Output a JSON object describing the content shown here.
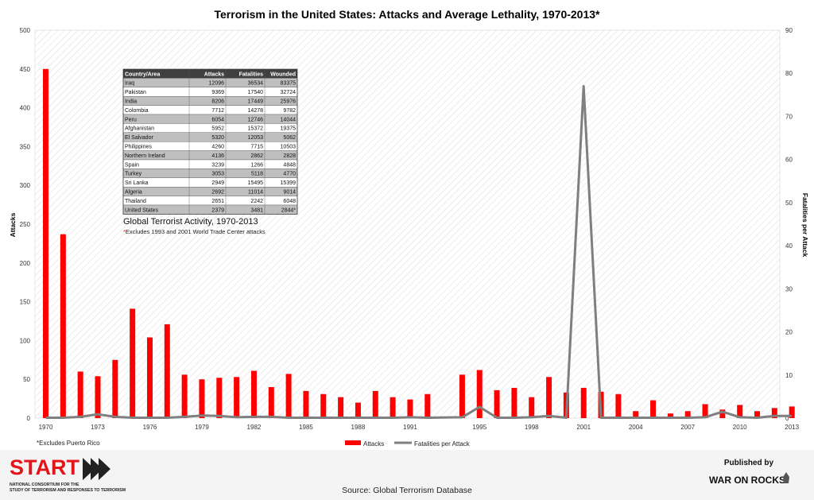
{
  "chart_data": {
    "type": "bar",
    "title": "Terrorism in the United States: Attacks and Average Lethality, 1970-2013*",
    "ylabel_left": "Attacks",
    "ylabel_right": "Fatalities per Attack",
    "ylim_left": [
      0,
      500
    ],
    "ylim_right": [
      0,
      90
    ],
    "y_ticks_left": [
      0,
      50,
      100,
      150,
      200,
      250,
      300,
      350,
      400,
      450,
      500
    ],
    "y_ticks_right": [
      0,
      10,
      20,
      30,
      40,
      50,
      60,
      70,
      80,
      90
    ],
    "x_tick_labels": [
      "1970",
      "1973",
      "1976",
      "1979",
      "1982",
      "1985",
      "1988",
      "1991",
      "1995",
      "1998",
      "2001",
      "2004",
      "2007",
      "2010",
      "2013"
    ],
    "grid": false,
    "legend_position": "bottom-center",
    "series": [
      {
        "name": "Attacks",
        "kind": "bar",
        "color": "#ff0000",
        "x": [
          "1970",
          "1971",
          "1972",
          "1973",
          "1974",
          "1975",
          "1976",
          "1977",
          "1978",
          "1979",
          "1980",
          "1981",
          "1982",
          "1983",
          "1984",
          "1985",
          "1986",
          "1987",
          "1988",
          "1989",
          "1990",
          "1991",
          "1992",
          "1994",
          "1995",
          "1996",
          "1997",
          "1998",
          "1999",
          "2000",
          "2001",
          "2002",
          "2003",
          "2004",
          "2005",
          "2006",
          "2007",
          "2008",
          "2009",
          "2010",
          "2011",
          "2012",
          "2013"
        ],
        "values": [
          450,
          237,
          60,
          54,
          75,
          141,
          104,
          121,
          56,
          50,
          52,
          53,
          61,
          40,
          57,
          35,
          31,
          27,
          20,
          35,
          27,
          24,
          31,
          56,
          62,
          36,
          39,
          27,
          53,
          33,
          39,
          34,
          31,
          9,
          23,
          6,
          9,
          18,
          11,
          17,
          9,
          13,
          15
        ]
      },
      {
        "name": "Fatalities per Attack",
        "kind": "line",
        "color": "#7f7f7f",
        "x": [
          "1970",
          "1971",
          "1972",
          "1973",
          "1974",
          "1975",
          "1976",
          "1977",
          "1978",
          "1979",
          "1980",
          "1981",
          "1982",
          "1983",
          "1984",
          "1985",
          "1986",
          "1987",
          "1988",
          "1989",
          "1990",
          "1991",
          "1992",
          "1994",
          "1995",
          "1996",
          "1997",
          "1998",
          "1999",
          "2000",
          "2001",
          "2002",
          "2003",
          "2004",
          "2005",
          "2006",
          "2007",
          "2008",
          "2009",
          "2010",
          "2011",
          "2012",
          "2013"
        ],
        "values": [
          0.1,
          0.1,
          0.3,
          0.9,
          0.3,
          0.1,
          0.1,
          0.1,
          0.3,
          0.6,
          0.5,
          0.2,
          0.3,
          0.3,
          0.1,
          0.1,
          0.1,
          0.1,
          0.1,
          0.1,
          0.1,
          0.2,
          0.1,
          0.2,
          2.6,
          0.1,
          0.1,
          0.2,
          0.5,
          0.1,
          77.0,
          0.1,
          0.1,
          0.1,
          0.1,
          0.1,
          0.1,
          0.2,
          1.5,
          0.2,
          0.1,
          0.5,
          0.5
        ]
      }
    ],
    "inset_table": {
      "title": "Global Terrorist Activity, 1970-2013",
      "note": "*Excludes 1993 and 2001 World Trade Center attacks",
      "columns": [
        "Country/Area",
        "Attacks",
        "Fatalities",
        "Wounded"
      ],
      "rows": [
        [
          "Iraq",
          "12096",
          "36534",
          "83375"
        ],
        [
          "Pakistan",
          "9369",
          "17540",
          "32724"
        ],
        [
          "India",
          "8206",
          "17449",
          "25976"
        ],
        [
          "Colombia",
          "7712",
          "14278",
          "9782"
        ],
        [
          "Peru",
          "6054",
          "12746",
          "14044"
        ],
        [
          "Afghanistan",
          "5952",
          "15372",
          "19375"
        ],
        [
          "El Salvador",
          "5320",
          "12053",
          "5062"
        ],
        [
          "Philippines",
          "4260",
          "7715",
          "10503"
        ],
        [
          "Northern Ireland",
          "4136",
          "2862",
          "2828"
        ],
        [
          "Spain",
          "3239",
          "1266",
          "4848"
        ],
        [
          "Turkey",
          "3053",
          "5118",
          "4770"
        ],
        [
          "Sri Lanka",
          "2949",
          "15495",
          "15399"
        ],
        [
          "Algeria",
          "2692",
          "11014",
          "9014"
        ],
        [
          "Thailand",
          "2651",
          "2242",
          "6048"
        ],
        [
          "United States",
          "2379",
          "3481",
          "2844*"
        ]
      ],
      "highlight_color": "#ff0000"
    }
  },
  "footnote": "*Excludes Puerto Rico",
  "source": "Source: Global Terrorism Database",
  "branding": {
    "start_logo": "START",
    "start_sub_line1": "NATIONAL CONSORTIUM FOR THE",
    "start_sub_line2": "STUDY OF TERRORISM AND RESPONSES TO TERRORISM",
    "published_by": "Published by",
    "war_on_rocks": "WAR ON ROCKS",
    "brand_color": "#e4141b"
  }
}
